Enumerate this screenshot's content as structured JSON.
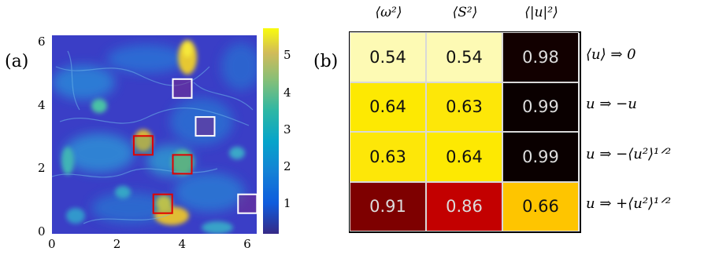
{
  "panel_a": {
    "label": "(a)",
    "x_ticks": [
      "0",
      "2",
      "4",
      "6"
    ],
    "y_ticks": [
      "0",
      "2",
      "4",
      "6"
    ],
    "colorbar_ticks": [
      "1",
      "2",
      "3",
      "4",
      "5"
    ],
    "white_boxes": [
      {
        "x": 4.0,
        "y": 4.6
      },
      {
        "x": 4.7,
        "y": 3.4
      },
      {
        "x": 6.0,
        "y": 0.95
      }
    ],
    "red_boxes": [
      {
        "x": 2.8,
        "y": 2.8
      },
      {
        "x": 4.0,
        "y": 2.2
      },
      {
        "x": 3.4,
        "y": 0.95
      }
    ]
  },
  "panel_b": {
    "label": "(b)",
    "col_headers": [
      "⟨ω²⟩",
      "⟨S²⟩",
      "⟨|u|²⟩"
    ],
    "row_labels": [
      "⟨u⟩ ⇒ 0",
      "u ⇒ −u",
      "u ⇒ −⟨u²⟩¹ᐟ²",
      "u ⇒ +⟨u²⟩¹ᐟ²"
    ],
    "values": [
      [
        "0.54",
        "0.54",
        "0.98"
      ],
      [
        "0.64",
        "0.63",
        "0.99"
      ],
      [
        "0.63",
        "0.64",
        "0.99"
      ],
      [
        "0.91",
        "0.86",
        "0.66"
      ]
    ],
    "cell_colors": [
      [
        "#fdfab4",
        "#fdfab4",
        "#120000"
      ],
      [
        "#fde902",
        "#fde708",
        "#0a0000"
      ],
      [
        "#fde708",
        "#fde902",
        "#0a0000"
      ],
      [
        "#7e0000",
        "#c30000",
        "#fec500"
      ]
    ]
  }
}
